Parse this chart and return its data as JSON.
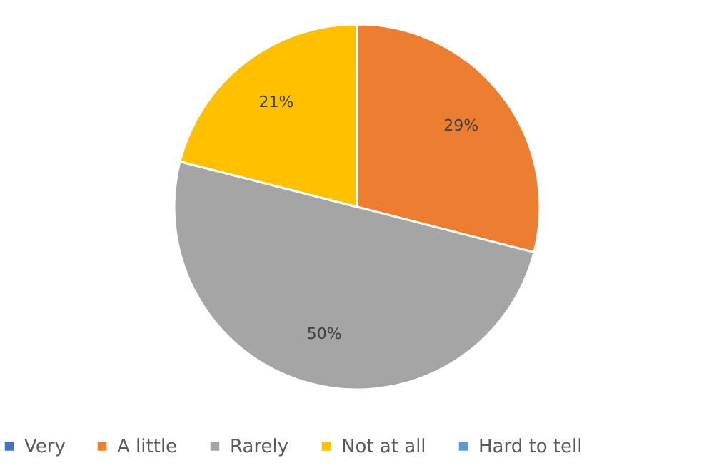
{
  "chart_data": {
    "type": "pie",
    "categories": [
      "Very",
      "A little",
      "Rarely",
      "Not at all",
      "Hard to tell"
    ],
    "values": [
      0,
      29,
      50,
      21,
      0
    ],
    "colors": [
      "#4472c4",
      "#ed7d31",
      "#a5a5a5",
      "#ffc000",
      "#5b9bd5"
    ],
    "value_labels": [
      null,
      "29%",
      "50%",
      "21%",
      null
    ],
    "legend": "bottom"
  }
}
